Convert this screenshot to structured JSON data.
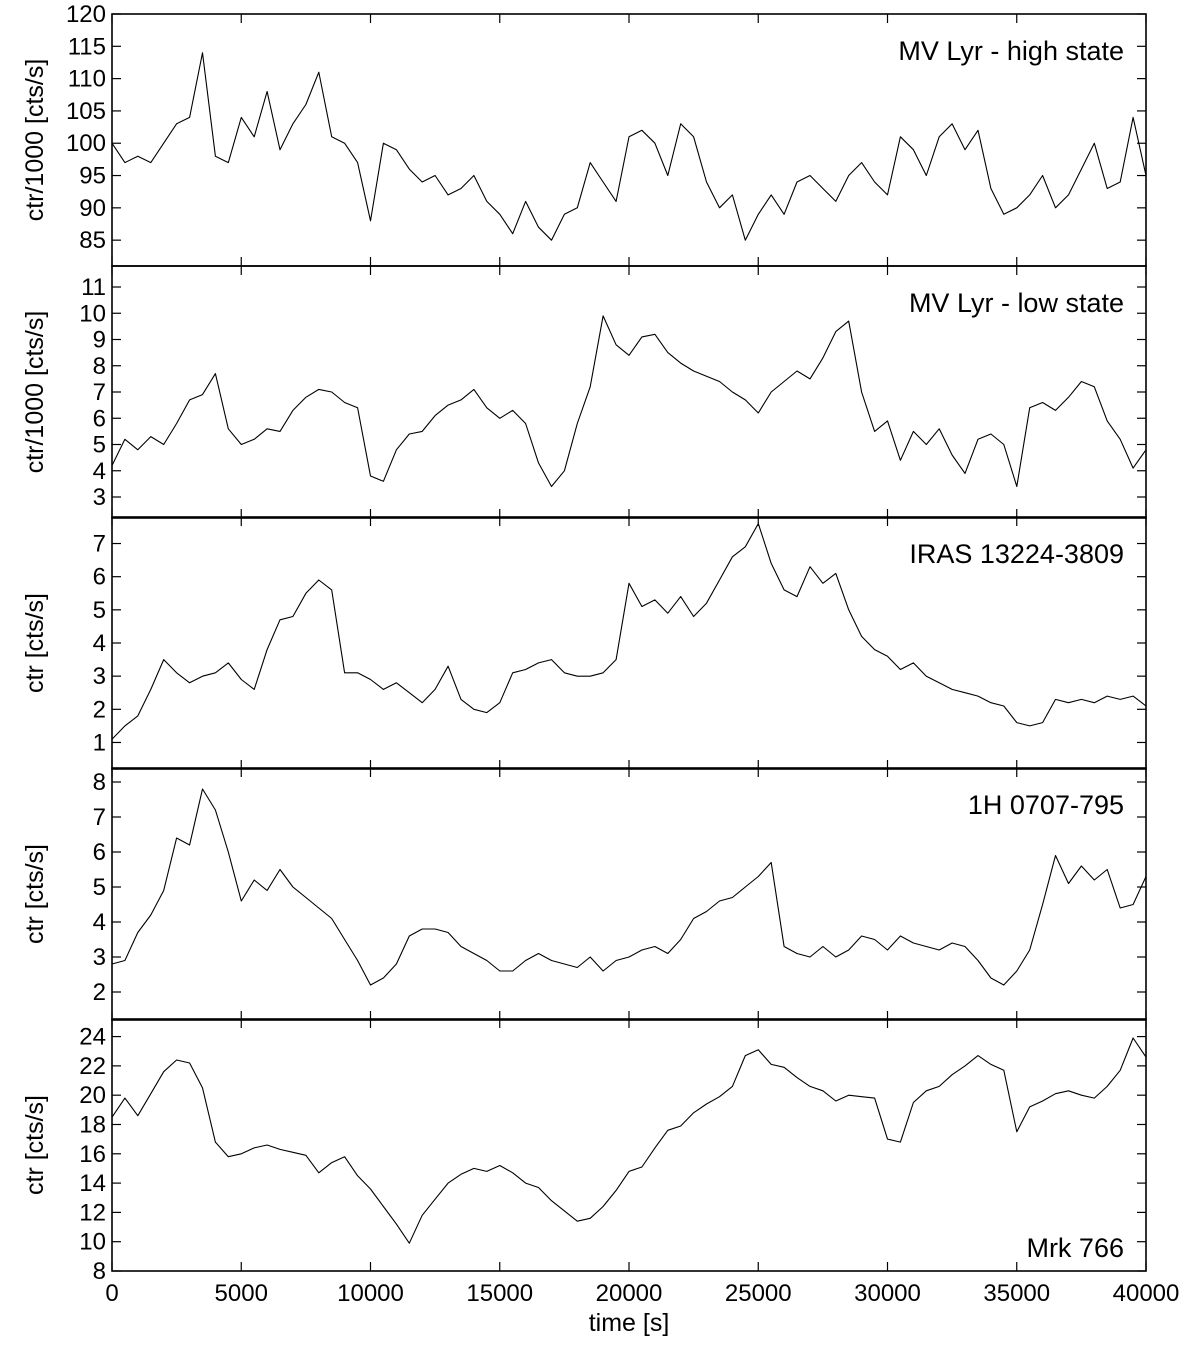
{
  "chart_data": {
    "type": "line",
    "shared_x": {
      "label": "time [s]",
      "xlim": [
        0,
        40000
      ],
      "ticks": [
        0,
        5000,
        10000,
        15000,
        20000,
        25000,
        30000,
        35000,
        40000
      ],
      "tick_labels": [
        "0",
        "5000",
        "10000",
        "15000",
        "20000",
        "25000",
        "30000",
        "35000",
        "40000"
      ]
    },
    "grid": false,
    "panels": [
      {
        "label": "MV Lyr - high state",
        "label_position": "top-right",
        "ylabel": "ctr/1000 [cts/s]",
        "ylim": [
          81,
          120
        ],
        "yticks": [
          85,
          90,
          95,
          100,
          105,
          110,
          115,
          120
        ],
        "ytick_labels": [
          "85",
          "90",
          "95",
          "100",
          "105",
          "110",
          "115",
          "120"
        ],
        "series": [
          {
            "x": [
              0,
              500,
              1000,
              1500,
              2000,
              2500,
              3000,
              3500,
              4000,
              4500,
              5000,
              5500,
              6000,
              6500,
              7000,
              7500,
              8000,
              8500,
              9000,
              9500,
              10000,
              10500,
              11000,
              11500,
              12000,
              12500,
              13000,
              13500,
              14000,
              14500,
              15000,
              15500,
              16000,
              16500,
              17000,
              17500,
              18000,
              18500,
              19000,
              19500,
              20000,
              20500,
              21000,
              21500,
              22000,
              22500,
              23000,
              23500,
              24000,
              24500,
              25000,
              25500,
              26000,
              26500,
              27000,
              27500,
              28000,
              28500,
              29000,
              29500,
              30000,
              30500,
              31000,
              31500,
              32000,
              32500,
              33000,
              33500,
              34000,
              34500,
              35000,
              35500,
              36000,
              36500,
              37000,
              37500,
              38000,
              38500,
              39000,
              39500,
              40000
            ],
            "values": [
              100,
              97,
              98,
              97,
              100,
              103,
              104,
              114,
              98,
              97,
              104,
              101,
              108,
              99,
              103,
              106,
              111,
              101,
              100,
              97,
              88,
              100,
              99,
              96,
              94,
              95,
              92,
              93,
              95,
              91,
              89,
              86,
              91,
              87,
              85,
              89,
              90,
              97,
              94,
              91,
              101,
              102,
              100,
              95,
              103,
              101,
              94,
              90,
              92,
              85,
              89,
              92,
              89,
              94,
              95,
              93,
              91,
              95,
              97,
              94,
              92,
              101,
              99,
              95,
              101,
              103,
              99,
              102,
              93,
              89,
              90,
              92,
              95,
              90,
              92,
              96,
              100,
              93,
              94,
              104,
              95
            ]
          }
        ]
      },
      {
        "label": "MV Lyr - low state",
        "label_position": "top-right",
        "ylabel": "ctr/1000 [cts/s]",
        "ylim": [
          2.2,
          11.8
        ],
        "yticks": [
          3,
          4,
          5,
          6,
          7,
          8,
          9,
          10,
          11
        ],
        "ytick_labels": [
          "3",
          "4",
          "5",
          "6",
          "7",
          "8",
          "9",
          "10",
          "11"
        ],
        "series": [
          {
            "x": [
              0,
              500,
              1000,
              1500,
              2000,
              2500,
              3000,
              3500,
              4000,
              4500,
              5000,
              5500,
              6000,
              6500,
              7000,
              7500,
              8000,
              8500,
              9000,
              9500,
              10000,
              10500,
              11000,
              11500,
              12000,
              12500,
              13000,
              13500,
              14000,
              14500,
              15000,
              15500,
              16000,
              16500,
              17000,
              17500,
              18000,
              18500,
              19000,
              19500,
              20000,
              20500,
              21000,
              21500,
              22000,
              22500,
              23000,
              23500,
              24000,
              24500,
              25000,
              25500,
              26000,
              26500,
              27000,
              27500,
              28000,
              28500,
              29000,
              29500,
              30000,
              30500,
              31000,
              31500,
              32000,
              32500,
              33000,
              33500,
              34000,
              34500,
              35000,
              35500,
              36000,
              36500,
              37000,
              37500,
              38000,
              38500,
              39000,
              39500,
              40000
            ],
            "values": [
              4.2,
              5.2,
              4.8,
              5.3,
              5.0,
              5.8,
              6.7,
              6.9,
              7.7,
              5.6,
              5.0,
              5.2,
              5.6,
              5.5,
              6.3,
              6.8,
              7.1,
              7.0,
              6.6,
              6.4,
              3.8,
              3.6,
              4.8,
              5.4,
              5.5,
              6.1,
              6.5,
              6.7,
              7.1,
              6.4,
              6.0,
              6.3,
              5.8,
              4.3,
              3.4,
              4.0,
              5.8,
              7.2,
              9.9,
              8.8,
              8.4,
              9.1,
              9.2,
              8.5,
              8.1,
              7.8,
              7.6,
              7.4,
              7.0,
              6.7,
              6.2,
              7.0,
              7.4,
              7.8,
              7.5,
              8.3,
              9.3,
              9.7,
              7.0,
              5.5,
              5.9,
              4.4,
              5.5,
              5.0,
              5.6,
              4.6,
              3.9,
              5.2,
              5.4,
              5.0,
              3.4,
              6.4,
              6.6,
              6.3,
              6.8,
              7.4,
              7.2,
              5.9,
              5.2,
              4.1,
              4.8
            ]
          }
        ]
      },
      {
        "label": "IRAS 13224-3809",
        "label_position": "top-right",
        "ylabel": "ctr [cts/s]",
        "ylim": [
          0.2,
          7.8
        ],
        "yticks": [
          1,
          2,
          3,
          4,
          5,
          6,
          7
        ],
        "ytick_labels": [
          "1",
          "2",
          "3",
          "4",
          "5",
          "6",
          "7"
        ],
        "series": [
          {
            "x": [
              0,
              500,
              1000,
              1500,
              2000,
              2500,
              3000,
              3500,
              4000,
              4500,
              5000,
              5500,
              6000,
              6500,
              7000,
              7500,
              8000,
              8500,
              9000,
              9500,
              10000,
              10500,
              11000,
              11500,
              12000,
              12500,
              13000,
              13500,
              14000,
              14500,
              15000,
              15500,
              16000,
              16500,
              17000,
              17500,
              18000,
              18500,
              19000,
              19500,
              20000,
              20500,
              21000,
              21500,
              22000,
              22500,
              23000,
              23500,
              24000,
              24500,
              25000,
              25500,
              26000,
              26500,
              27000,
              27500,
              28000,
              28500,
              29000,
              29500,
              30000,
              30500,
              31000,
              31500,
              32000,
              32500,
              33000,
              33500,
              34000,
              34500,
              35000,
              35500,
              36000,
              36500,
              37000,
              37500,
              38000,
              38500,
              39000,
              39500,
              40000
            ],
            "values": [
              1.1,
              1.5,
              1.8,
              2.6,
              3.5,
              3.1,
              2.8,
              3.0,
              3.1,
              3.4,
              2.9,
              2.6,
              3.8,
              4.7,
              4.8,
              5.5,
              5.9,
              5.6,
              3.1,
              3.1,
              2.9,
              2.6,
              2.8,
              2.5,
              2.2,
              2.6,
              3.3,
              2.3,
              2.0,
              1.9,
              2.2,
              3.1,
              3.2,
              3.4,
              3.5,
              3.1,
              3.0,
              3.0,
              3.1,
              3.5,
              5.8,
              5.1,
              5.3,
              4.9,
              5.4,
              4.8,
              5.2,
              5.9,
              6.6,
              6.9,
              7.6,
              6.4,
              5.6,
              5.4,
              6.3,
              5.8,
              6.1,
              5.0,
              4.2,
              3.8,
              3.6,
              3.2,
              3.4,
              3.0,
              2.8,
              2.6,
              2.5,
              2.4,
              2.2,
              2.1,
              1.6,
              1.5,
              1.6,
              2.3,
              2.2,
              2.3,
              2.2,
              2.4,
              2.3,
              2.4,
              2.1
            ]
          }
        ]
      },
      {
        "label": "1H 0707-795",
        "label_position": "top-right",
        "ylabel": "ctr [cts/s]",
        "ylim": [
          1.2,
          8.4
        ],
        "yticks": [
          2,
          3,
          4,
          5,
          6,
          7,
          8
        ],
        "ytick_labels": [
          "2",
          "3",
          "4",
          "5",
          "6",
          "7",
          "8"
        ],
        "series": [
          {
            "x": [
              0,
              500,
              1000,
              1500,
              2000,
              2500,
              3000,
              3500,
              4000,
              4500,
              5000,
              5500,
              6000,
              6500,
              7000,
              7500,
              8000,
              8500,
              9000,
              9500,
              10000,
              10500,
              11000,
              11500,
              12000,
              12500,
              13000,
              13500,
              14000,
              14500,
              15000,
              15500,
              16000,
              16500,
              17000,
              17500,
              18000,
              18500,
              19000,
              19500,
              20000,
              20500,
              21000,
              21500,
              22000,
              22500,
              23000,
              23500,
              24000,
              24500,
              25000,
              25500,
              26000,
              26500,
              27000,
              27500,
              28000,
              28500,
              29000,
              29500,
              30000,
              30500,
              31000,
              31500,
              32000,
              32500,
              33000,
              33500,
              34000,
              34500,
              35000,
              35500,
              36000,
              36500,
              37000,
              37500,
              38000,
              38500,
              39000,
              39500,
              40000
            ],
            "values": [
              2.8,
              2.9,
              3.7,
              4.2,
              4.9,
              6.4,
              6.2,
              7.8,
              7.2,
              6.0,
              4.6,
              5.2,
              4.9,
              5.5,
              5.0,
              4.7,
              4.4,
              4.1,
              3.5,
              2.9,
              2.2,
              2.4,
              2.8,
              3.6,
              3.8,
              3.8,
              3.7,
              3.3,
              3.1,
              2.9,
              2.6,
              2.6,
              2.9,
              3.1,
              2.9,
              2.8,
              2.7,
              3.0,
              2.6,
              2.9,
              3.0,
              3.2,
              3.3,
              3.1,
              3.5,
              4.1,
              4.3,
              4.6,
              4.7,
              5.0,
              5.3,
              5.7,
              3.3,
              3.1,
              3.0,
              3.3,
              3.0,
              3.2,
              3.6,
              3.5,
              3.2,
              3.6,
              3.4,
              3.3,
              3.2,
              3.4,
              3.3,
              2.9,
              2.4,
              2.2,
              2.6,
              3.2,
              4.5,
              5.9,
              5.1,
              5.6,
              5.2,
              5.5,
              4.4,
              4.5,
              5.3
            ]
          }
        ]
      },
      {
        "label": "Mrk 766",
        "label_position": "bottom-right",
        "ylabel": "ctr [cts/s]",
        "ylim": [
          8,
          25.2
        ],
        "yticks": [
          8,
          10,
          12,
          14,
          16,
          18,
          20,
          22,
          24
        ],
        "ytick_labels": [
          "8",
          "10",
          "12",
          "14",
          "16",
          "18",
          "20",
          "22",
          "24"
        ],
        "series": [
          {
            "x": [
              0,
              500,
              1000,
              1500,
              2000,
              2500,
              3000,
              3500,
              4000,
              4500,
              5000,
              5500,
              6000,
              6500,
              7000,
              7500,
              8000,
              8500,
              9000,
              9500,
              10000,
              10500,
              11000,
              11500,
              12000,
              12500,
              13000,
              13500,
              14000,
              14500,
              15000,
              15500,
              16000,
              16500,
              17000,
              17500,
              18000,
              18500,
              19000,
              19500,
              20000,
              20500,
              21000,
              21500,
              22000,
              22500,
              23000,
              23500,
              24000,
              24500,
              25000,
              25500,
              26000,
              26500,
              27000,
              27500,
              28000,
              28500,
              29000,
              29500,
              30000,
              30500,
              31000,
              31500,
              32000,
              32500,
              33000,
              33500,
              34000,
              34500,
              35000,
              35500,
              36000,
              36500,
              37000,
              37500,
              38000,
              38500,
              39000,
              39500,
              40000
            ],
            "values": [
              18.5,
              19.8,
              18.6,
              20.1,
              21.6,
              22.4,
              22.2,
              20.5,
              16.8,
              15.8,
              16.0,
              16.4,
              16.6,
              16.3,
              16.1,
              15.9,
              14.7,
              15.4,
              15.8,
              14.5,
              13.6,
              12.4,
              11.2,
              9.9,
              11.8,
              12.9,
              14.0,
              14.6,
              15.0,
              14.8,
              15.2,
              14.7,
              14.0,
              13.7,
              12.8,
              12.1,
              11.4,
              11.6,
              12.4,
              13.5,
              14.8,
              15.1,
              16.4,
              17.6,
              17.9,
              18.8,
              19.4,
              19.9,
              20.6,
              22.7,
              23.1,
              22.1,
              21.9,
              21.2,
              20.6,
              20.3,
              19.6,
              20.0,
              19.9,
              19.8,
              17.0,
              16.8,
              19.5,
              20.3,
              20.6,
              21.4,
              22.0,
              22.7,
              22.1,
              21.7,
              17.5,
              19.2,
              19.6,
              20.1,
              20.3,
              20.0,
              19.8,
              20.6,
              21.7,
              23.9,
              22.6
            ]
          }
        ]
      }
    ]
  }
}
